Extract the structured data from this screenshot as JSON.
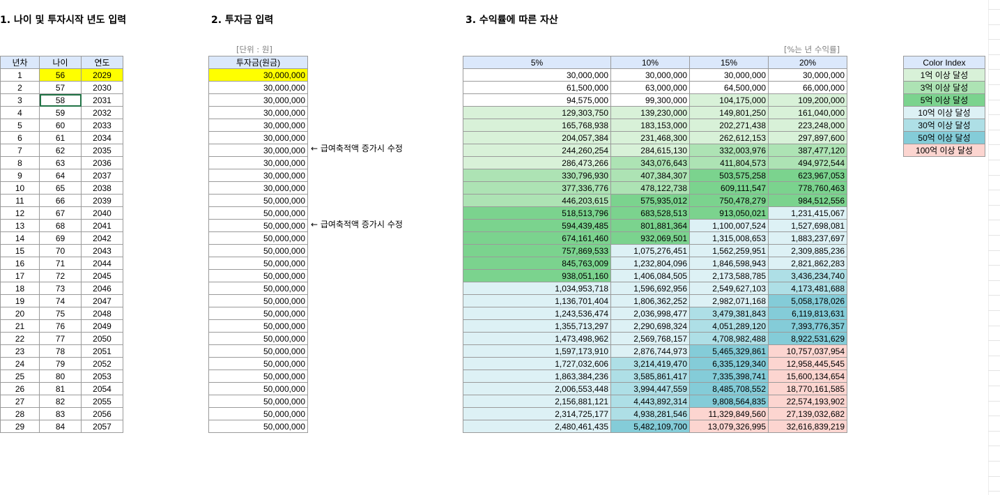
{
  "sections": {
    "s1_title": "1. 나이 및 투자시작 년도 입력",
    "s2_title": "2. 투자금 입력",
    "s3_title": "3. 수익률에 따른 자산"
  },
  "unit_labels": {
    "won": "[단위 : 원]",
    "rate": "[%는 년 수익률]"
  },
  "notes": {
    "row6": "← 급여축적액 증가시 수정",
    "row11": "← 급여축적액 증가시 수정"
  },
  "table1": {
    "headers": [
      "년차",
      "나이",
      "연도"
    ],
    "rows": [
      [
        "1",
        "56",
        "2029"
      ],
      [
        "2",
        "57",
        "2030"
      ],
      [
        "3",
        "58",
        "2031"
      ],
      [
        "4",
        "59",
        "2032"
      ],
      [
        "5",
        "60",
        "2033"
      ],
      [
        "6",
        "61",
        "2034"
      ],
      [
        "7",
        "62",
        "2035"
      ],
      [
        "8",
        "63",
        "2036"
      ],
      [
        "9",
        "64",
        "2037"
      ],
      [
        "10",
        "65",
        "2038"
      ],
      [
        "11",
        "66",
        "2039"
      ],
      [
        "12",
        "67",
        "2040"
      ],
      [
        "13",
        "68",
        "2041"
      ],
      [
        "14",
        "69",
        "2042"
      ],
      [
        "15",
        "70",
        "2043"
      ],
      [
        "16",
        "71",
        "2044"
      ],
      [
        "17",
        "72",
        "2045"
      ],
      [
        "18",
        "73",
        "2046"
      ],
      [
        "19",
        "74",
        "2047"
      ],
      [
        "20",
        "75",
        "2048"
      ],
      [
        "21",
        "76",
        "2049"
      ],
      [
        "22",
        "77",
        "2050"
      ],
      [
        "23",
        "78",
        "2051"
      ],
      [
        "24",
        "79",
        "2052"
      ],
      [
        "25",
        "80",
        "2053"
      ],
      [
        "26",
        "81",
        "2054"
      ],
      [
        "27",
        "82",
        "2055"
      ],
      [
        "28",
        "83",
        "2056"
      ],
      [
        "29",
        "84",
        "2057"
      ]
    ]
  },
  "table2": {
    "header": "투자금(원금)",
    "values": [
      "30,000,000",
      "30,000,000",
      "30,000,000",
      "30,000,000",
      "30,000,000",
      "30,000,000",
      "30,000,000",
      "30,000,000",
      "30,000,000",
      "30,000,000",
      "50,000,000",
      "50,000,000",
      "50,000,000",
      "50,000,000",
      "50,000,000",
      "50,000,000",
      "50,000,000",
      "50,000,000",
      "50,000,000",
      "50,000,000",
      "50,000,000",
      "50,000,000",
      "50,000,000",
      "50,000,000",
      "50,000,000",
      "50,000,000",
      "50,000,000",
      "50,000,000",
      "50,000,000"
    ]
  },
  "table3": {
    "headers": [
      "5%",
      "10%",
      "15%",
      "20%"
    ],
    "rows": [
      [
        "30,000,000",
        "30,000,000",
        "30,000,000",
        "30,000,000"
      ],
      [
        "61,500,000",
        "63,000,000",
        "64,500,000",
        "66,000,000"
      ],
      [
        "94,575,000",
        "99,300,000",
        "104,175,000",
        "109,200,000"
      ],
      [
        "129,303,750",
        "139,230,000",
        "149,801,250",
        "161,040,000"
      ],
      [
        "165,768,938",
        "183,153,000",
        "202,271,438",
        "223,248,000"
      ],
      [
        "204,057,384",
        "231,468,300",
        "262,612,153",
        "297,897,600"
      ],
      [
        "244,260,254",
        "284,615,130",
        "332,003,976",
        "387,477,120"
      ],
      [
        "286,473,266",
        "343,076,643",
        "411,804,573",
        "494,972,544"
      ],
      [
        "330,796,930",
        "407,384,307",
        "503,575,258",
        "623,967,053"
      ],
      [
        "377,336,776",
        "478,122,738",
        "609,111,547",
        "778,760,463"
      ],
      [
        "446,203,615",
        "575,935,012",
        "750,478,279",
        "984,512,556"
      ],
      [
        "518,513,796",
        "683,528,513",
        "913,050,021",
        "1,231,415,067"
      ],
      [
        "594,439,485",
        "801,881,364",
        "1,100,007,524",
        "1,527,698,081"
      ],
      [
        "674,161,460",
        "932,069,501",
        "1,315,008,653",
        "1,883,237,697"
      ],
      [
        "757,869,533",
        "1,075,276,451",
        "1,562,259,951",
        "2,309,885,236"
      ],
      [
        "845,763,009",
        "1,232,804,096",
        "1,846,598,943",
        "2,821,862,283"
      ],
      [
        "938,051,160",
        "1,406,084,505",
        "2,173,588,785",
        "3,436,234,740"
      ],
      [
        "1,034,953,718",
        "1,596,692,956",
        "2,549,627,103",
        "4,173,481,688"
      ],
      [
        "1,136,701,404",
        "1,806,362,252",
        "2,982,071,168",
        "5,058,178,026"
      ],
      [
        "1,243,536,474",
        "2,036,998,477",
        "3,479,381,843",
        "6,119,813,631"
      ],
      [
        "1,355,713,297",
        "2,290,698,324",
        "4,051,289,120",
        "7,393,776,357"
      ],
      [
        "1,473,498,962",
        "2,569,768,157",
        "4,708,982,488",
        "8,922,531,629"
      ],
      [
        "1,597,173,910",
        "2,876,744,973",
        "5,465,329,861",
        "10,757,037,954"
      ],
      [
        "1,727,032,606",
        "3,214,419,470",
        "6,335,129,340",
        "12,958,445,545"
      ],
      [
        "1,863,384,236",
        "3,585,861,417",
        "7,335,398,741",
        "15,600,134,654"
      ],
      [
        "2,006,553,448",
        "3,994,447,559",
        "8,485,708,552",
        "18,770,161,585"
      ],
      [
        "2,156,881,121",
        "4,443,892,314",
        "9,808,564,835",
        "22,574,193,902"
      ],
      [
        "2,314,725,177",
        "4,938,281,546",
        "11,329,849,560",
        "27,139,032,682"
      ],
      [
        "2,480,461,435",
        "5,482,109,700",
        "13,079,326,995",
        "32,616,839,219"
      ]
    ]
  },
  "color_index": {
    "header": "Color Index",
    "items": [
      {
        "label": "1억 이상 달성",
        "color": "#d8f1d8"
      },
      {
        "label": "3억 이상 달성",
        "color": "#ade3b4"
      },
      {
        "label": "5억 이상 달성",
        "color": "#7bd38e"
      },
      {
        "label": "10억 이상 달성",
        "color": "#ddf1f5"
      },
      {
        "label": "30억 이상 달성",
        "color": "#aedfe6"
      },
      {
        "label": "50억 이상 달성",
        "color": "#84ccd8"
      },
      {
        "label": "100억 이상 달성",
        "color": "#fcd5d0"
      }
    ]
  },
  "colors": {
    "header_bg": "#dbe8fb",
    "input_highlight": "#ffff00",
    "selection": "#217346"
  }
}
